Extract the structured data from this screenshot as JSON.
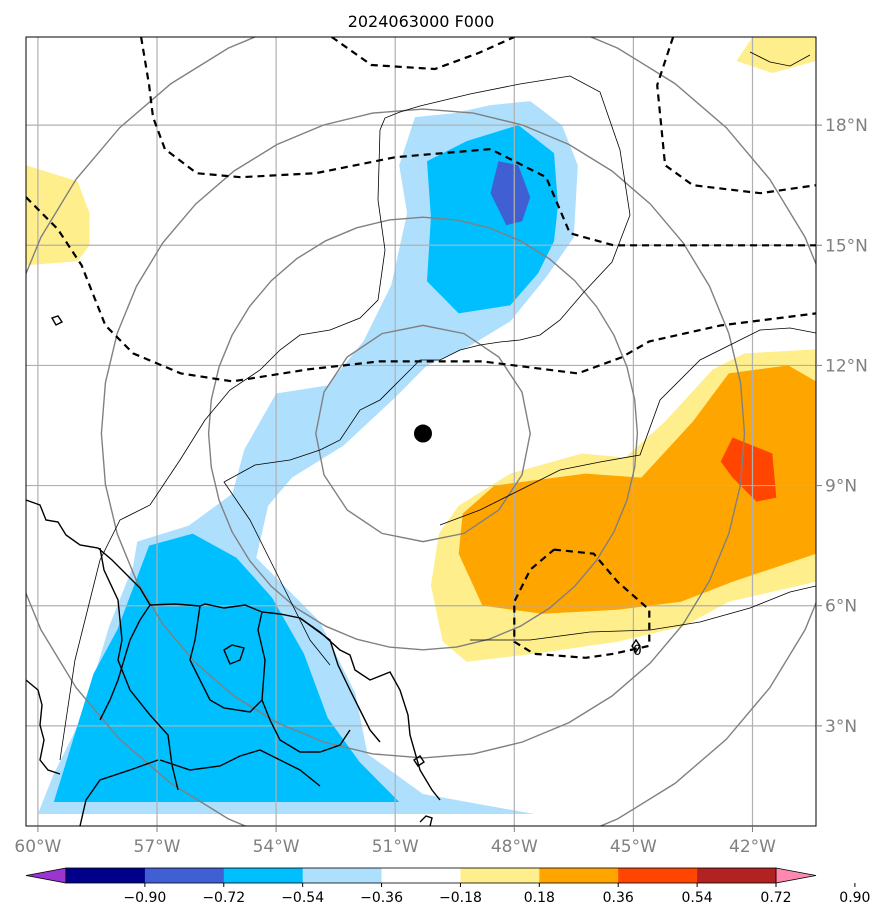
{
  "chart_data": {
    "type": "map-contour",
    "title": "2024063000 F000",
    "x_axis": {
      "ticks": [
        -60,
        -57,
        -54,
        -51,
        -48,
        -45,
        -42
      ],
      "tick_labels": [
        "60°W",
        "57°W",
        "54°W",
        "51°W",
        "48°W",
        "45°W",
        "42°W"
      ],
      "range": [
        -60.3,
        -40.4
      ]
    },
    "y_axis": {
      "ticks": [
        3,
        6,
        9,
        12,
        15,
        18
      ],
      "tick_labels": [
        "3°N",
        "6°N",
        "9°N",
        "12°N",
        "15°N",
        "18°N"
      ],
      "range": [
        0.5,
        20.2
      ],
      "position": "right"
    },
    "grid": true,
    "center_point": {
      "lon": -50.3,
      "lat": 10.3
    },
    "range_rings_deg": [
      2.7,
      5.4,
      8.1,
      10.8
    ],
    "colorbar": {
      "position": "bottom",
      "extend": "both",
      "boundaries": [
        -0.9,
        -0.72,
        -0.54,
        -0.36,
        -0.18,
        0.18,
        0.36,
        0.54,
        0.72,
        0.9
      ],
      "tick_labels": [
        "−0.90",
        "−0.72",
        "−0.54",
        "−0.36",
        "−0.18",
        "0.18",
        "0.36",
        "0.54",
        "0.72",
        "0.90"
      ],
      "colors": [
        "#9a35cf",
        "#00008b",
        "#3f5fd2",
        "#00bfff",
        "#aee0fd",
        "#ffffff",
        "#ffee8c",
        "#ffa500",
        "#ff4500",
        "#b22222",
        "#ff88b0"
      ]
    },
    "shaded_regions": [
      {
        "level": "-0.18 to -0.36",
        "color": "#aee0fd",
        "polygon": [
          [
            -48.6,
            18.5
          ],
          [
            -47.6,
            18.6
          ],
          [
            -46.8,
            18.0
          ],
          [
            -46.4,
            17.0
          ],
          [
            -46.5,
            15.2
          ],
          [
            -47.2,
            14.2
          ],
          [
            -48.1,
            13.1
          ],
          [
            -49.1,
            12.5
          ],
          [
            -50.2,
            12.0
          ],
          [
            -51.0,
            11.2
          ],
          [
            -52.3,
            10.0
          ],
          [
            -53.6,
            9.2
          ],
          [
            -54.2,
            8.5
          ],
          [
            -54.5,
            7.2
          ],
          [
            -52.9,
            5.6
          ],
          [
            -52.0,
            3.8
          ],
          [
            -51.7,
            2.3
          ],
          [
            -50.3,
            1.3
          ],
          [
            -47.5,
            0.8
          ],
          [
            -60.0,
            0.8
          ],
          [
            -59.6,
            1.8
          ],
          [
            -58.9,
            3.2
          ],
          [
            -58.2,
            5.5
          ],
          [
            -57.6,
            7.0
          ],
          [
            -57.5,
            7.6
          ],
          [
            -56.2,
            8.0
          ],
          [
            -55.1,
            8.8
          ],
          [
            -54.8,
            9.9
          ],
          [
            -54.0,
            11.3
          ],
          [
            -52.7,
            11.5
          ],
          [
            -51.8,
            12.6
          ],
          [
            -51.1,
            14.0
          ],
          [
            -50.7,
            15.8
          ],
          [
            -50.9,
            17.0
          ],
          [
            -50.5,
            18.2
          ],
          [
            -49.5,
            18.3
          ]
        ]
      },
      {
        "level": "-0.36 to -0.54",
        "color": "#00bfff",
        "polygon": [
          [
            -49.2,
            17.6
          ],
          [
            -47.9,
            18.0
          ],
          [
            -47.0,
            17.3
          ],
          [
            -46.9,
            16.0
          ],
          [
            -47.0,
            15.1
          ],
          [
            -47.4,
            14.3
          ],
          [
            -48.1,
            13.5
          ],
          [
            -49.4,
            13.3
          ],
          [
            -50.2,
            14.1
          ],
          [
            -50.1,
            15.7
          ],
          [
            -50.2,
            17.1
          ]
        ]
      },
      {
        "level": "-0.36 to -0.54",
        "color": "#00bfff",
        "polygon": [
          [
            -57.2,
            7.5
          ],
          [
            -56.1,
            7.8
          ],
          [
            -55.0,
            7.2
          ],
          [
            -54.1,
            6.2
          ],
          [
            -53.3,
            4.8
          ],
          [
            -52.7,
            3.2
          ],
          [
            -51.9,
            2.1
          ],
          [
            -50.9,
            1.1
          ],
          [
            -59.6,
            1.1
          ],
          [
            -59.1,
            2.7
          ],
          [
            -58.6,
            4.3
          ],
          [
            -58.0,
            5.4
          ]
        ]
      },
      {
        "level": "-0.54 to -0.72",
        "color": "#3f5fd2",
        "polygon": [
          [
            -48.4,
            17.1
          ],
          [
            -47.9,
            17.0
          ],
          [
            -47.6,
            16.2
          ],
          [
            -47.8,
            15.6
          ],
          [
            -48.2,
            15.5
          ],
          [
            -48.6,
            16.3
          ]
        ]
      },
      {
        "level": "0.18 to 0.36",
        "color": "#ffee8c",
        "polygon": [
          [
            -45.2,
            9.7
          ],
          [
            -44.2,
            10.6
          ],
          [
            -43.0,
            11.9
          ],
          [
            -42.2,
            12.3
          ],
          [
            -40.4,
            12.4
          ],
          [
            -40.4,
            6.6
          ],
          [
            -42.6,
            6.1
          ],
          [
            -43.7,
            5.5
          ],
          [
            -45.4,
            5.1
          ],
          [
            -47.5,
            4.8
          ],
          [
            -49.2,
            4.6
          ],
          [
            -49.8,
            5.1
          ],
          [
            -50.1,
            6.5
          ],
          [
            -49.9,
            7.8
          ],
          [
            -49.4,
            8.5
          ],
          [
            -48.1,
            9.3
          ],
          [
            -46.3,
            9.8
          ]
        ]
      },
      {
        "level": "0.36 to 0.54",
        "color": "#ffa500",
        "polygon": [
          [
            -44.8,
            9.2
          ],
          [
            -43.5,
            10.6
          ],
          [
            -42.6,
            11.8
          ],
          [
            -41.1,
            12.0
          ],
          [
            -40.4,
            11.6
          ],
          [
            -40.4,
            7.3
          ],
          [
            -41.6,
            6.9
          ],
          [
            -42.5,
            6.6
          ],
          [
            -43.8,
            6.1
          ],
          [
            -45.4,
            5.9
          ],
          [
            -47.3,
            5.8
          ],
          [
            -48.8,
            6.0
          ],
          [
            -49.4,
            7.3
          ],
          [
            -49.3,
            8.3
          ],
          [
            -48.5,
            9.0
          ],
          [
            -46.2,
            9.3
          ]
        ]
      },
      {
        "level": "0.54 to 0.72",
        "color": "#ff4500",
        "polygon": [
          [
            -42.5,
            10.2
          ],
          [
            -41.5,
            9.8
          ],
          [
            -41.4,
            8.7
          ],
          [
            -41.9,
            8.6
          ],
          [
            -42.5,
            9.2
          ],
          [
            -42.8,
            9.6
          ]
        ]
      },
      {
        "level": "0.18 to 0.36",
        "color": "#ffee8c",
        "polygon": [
          [
            -60.3,
            17.0
          ],
          [
            -59.0,
            16.6
          ],
          [
            -58.7,
            15.8
          ],
          [
            -58.7,
            15.0
          ],
          [
            -59.0,
            14.6
          ],
          [
            -60.3,
            14.5
          ]
        ]
      },
      {
        "level": "0.18 to 0.36",
        "color": "#ffee8c",
        "polygon": [
          [
            -42.0,
            20.2
          ],
          [
            -40.4,
            20.2
          ],
          [
            -40.4,
            19.6
          ],
          [
            -41.5,
            19.3
          ],
          [
            -42.4,
            19.6
          ]
        ]
      }
    ],
    "dashed_contours": [
      [
        [
          -57.4,
          20.2
        ],
        [
          -57.2,
          19.0
        ],
        [
          -57.1,
          18.2
        ],
        [
          -56.8,
          17.4
        ],
        [
          -56.0,
          16.8
        ],
        [
          -54.9,
          16.7
        ],
        [
          -53.0,
          16.8
        ],
        [
          -51.0,
          17.2
        ],
        [
          -48.6,
          17.4
        ],
        [
          -47.2,
          16.7
        ],
        [
          -46.6,
          15.3
        ],
        [
          -45.5,
          15.0
        ],
        [
          -43.0,
          15.0
        ],
        [
          -40.4,
          15.0
        ]
      ],
      [
        [
          -60.3,
          16.2
        ],
        [
          -59.5,
          15.4
        ],
        [
          -58.9,
          14.5
        ],
        [
          -58.3,
          13.0
        ],
        [
          -57.6,
          12.3
        ],
        [
          -56.4,
          11.8
        ],
        [
          -55.1,
          11.6
        ],
        [
          -53.2,
          11.9
        ],
        [
          -51.4,
          12.1
        ],
        [
          -50.1,
          12.1
        ],
        [
          -48.8,
          12.1
        ],
        [
          -46.4,
          11.8
        ],
        [
          -45.3,
          12.2
        ],
        [
          -44.6,
          12.6
        ],
        [
          -42.8,
          13.0
        ],
        [
          -40.4,
          13.3
        ]
      ],
      [
        [
          -52.6,
          20.2
        ],
        [
          -51.6,
          19.5
        ],
        [
          -50.0,
          19.4
        ],
        [
          -48.9,
          19.8
        ],
        [
          -48.0,
          20.2
        ]
      ],
      [
        [
          -44.0,
          20.2
        ],
        [
          -44.4,
          19.0
        ],
        [
          -44.2,
          17.0
        ],
        [
          -43.5,
          16.5
        ],
        [
          -41.8,
          16.3
        ],
        [
          -40.4,
          16.5
        ]
      ],
      [
        [
          -47.0,
          7.4
        ],
        [
          -46.0,
          7.3
        ],
        [
          -45.4,
          6.6
        ],
        [
          -44.6,
          5.9
        ],
        [
          -44.6,
          5.0
        ],
        [
          -45.5,
          4.8
        ],
        [
          -46.2,
          4.7
        ],
        [
          -47.5,
          4.8
        ],
        [
          -48.0,
          5.1
        ],
        [
          -48.0,
          6.1
        ],
        [
          -47.6,
          6.9
        ],
        [
          -47.0,
          7.4
        ]
      ]
    ],
    "zero_label": {
      "text": "0",
      "lon": -44.9,
      "lat": 4.9
    }
  }
}
